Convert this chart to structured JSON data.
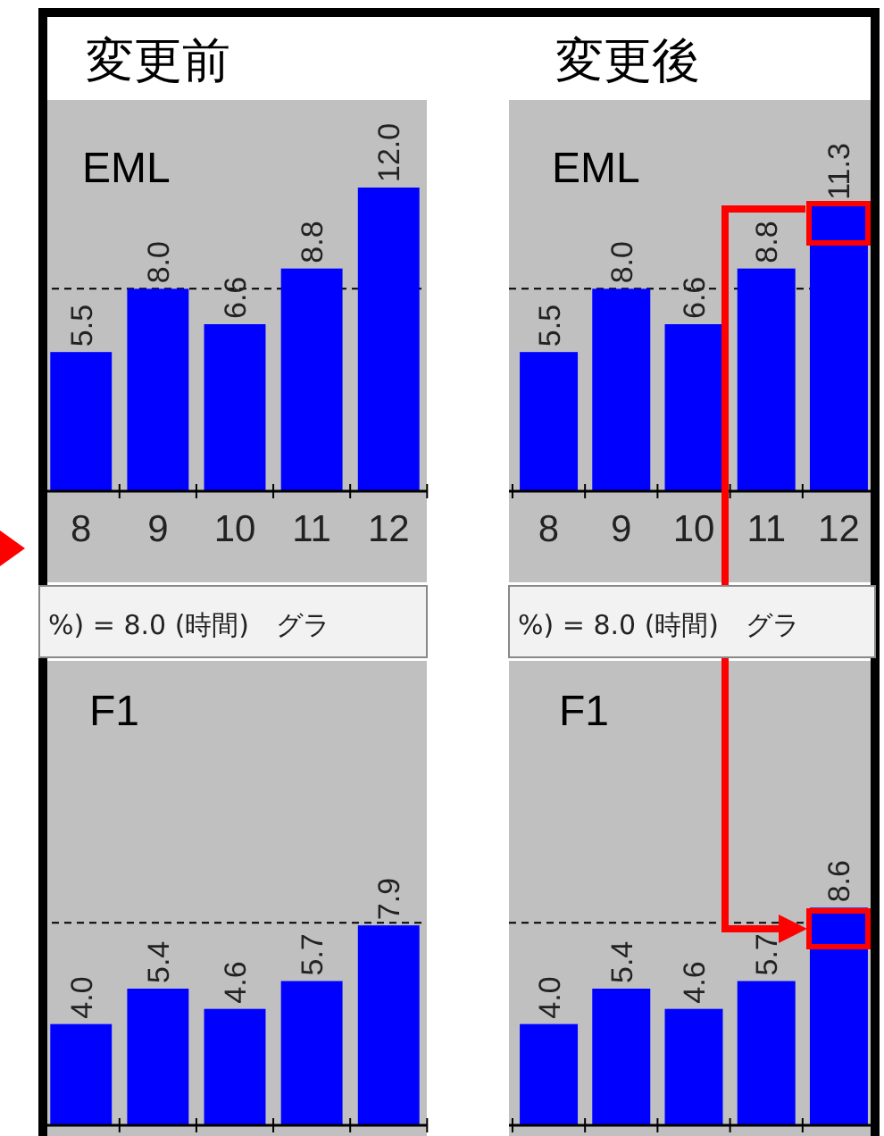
{
  "chart_data": [
    {
      "type": "bar",
      "title": "変更前",
      "subtitle": "EML",
      "categories": [
        "8",
        "9",
        "10",
        "11",
        "12"
      ],
      "values": [
        5.5,
        8.0,
        6.6,
        8.8,
        12.0
      ],
      "value_labels": [
        "5.5",
        "8.0",
        "6.6",
        "8.8",
        "12.0"
      ],
      "color": "#0000ff",
      "data_labels": true,
      "ref_lines": [
        {
          "axis": "y",
          "value": 8.0,
          "line_style": "dashed",
          "color": "#000000"
        }
      ],
      "annotations": [
        "%) = 8.0 (時間)　グラ"
      ]
    },
    {
      "type": "bar",
      "title": "変更後",
      "subtitle": "EML",
      "categories": [
        "8",
        "9",
        "10",
        "11",
        "12"
      ],
      "values": [
        5.5,
        8.0,
        6.6,
        8.8,
        11.3
      ],
      "value_labels": [
        "5.5",
        "8.0",
        "6.6",
        "8.8",
        "11.3"
      ],
      "color": "#0000ff",
      "data_labels": true,
      "ref_lines": [
        {
          "axis": "y",
          "value": 8.0,
          "line_style": "dashed",
          "color": "#000000"
        }
      ],
      "annotations": [
        "%) = 8.0 (時間)　グラ"
      ]
    },
    {
      "type": "bar",
      "title": "F1",
      "categories": [
        null,
        null,
        null,
        null,
        null
      ],
      "values": [
        4.0,
        5.4,
        4.6,
        5.7,
        7.9
      ],
      "value_labels": [
        "4.0",
        "5.4",
        "4.6",
        "5.7",
        "7.9"
      ],
      "color": "#0000ff",
      "data_labels": true,
      "ref_lines": [
        {
          "axis": "y",
          "value": 8.0,
          "line_style": "dashed",
          "color": "#000000"
        }
      ]
    },
    {
      "type": "bar",
      "title": "F1",
      "categories": [
        null,
        null,
        null,
        null,
        null
      ],
      "values": [
        4.0,
        5.4,
        4.6,
        5.7,
        8.6
      ],
      "value_labels": [
        "4.0",
        "5.4",
        "4.6",
        "5.7",
        "8.6"
      ],
      "color": "#0000ff",
      "data_labels": true,
      "ref_lines": [
        {
          "axis": "y",
          "value": 8.0,
          "line_style": "dashed",
          "color": "#000000"
        }
      ]
    }
  ]
}
